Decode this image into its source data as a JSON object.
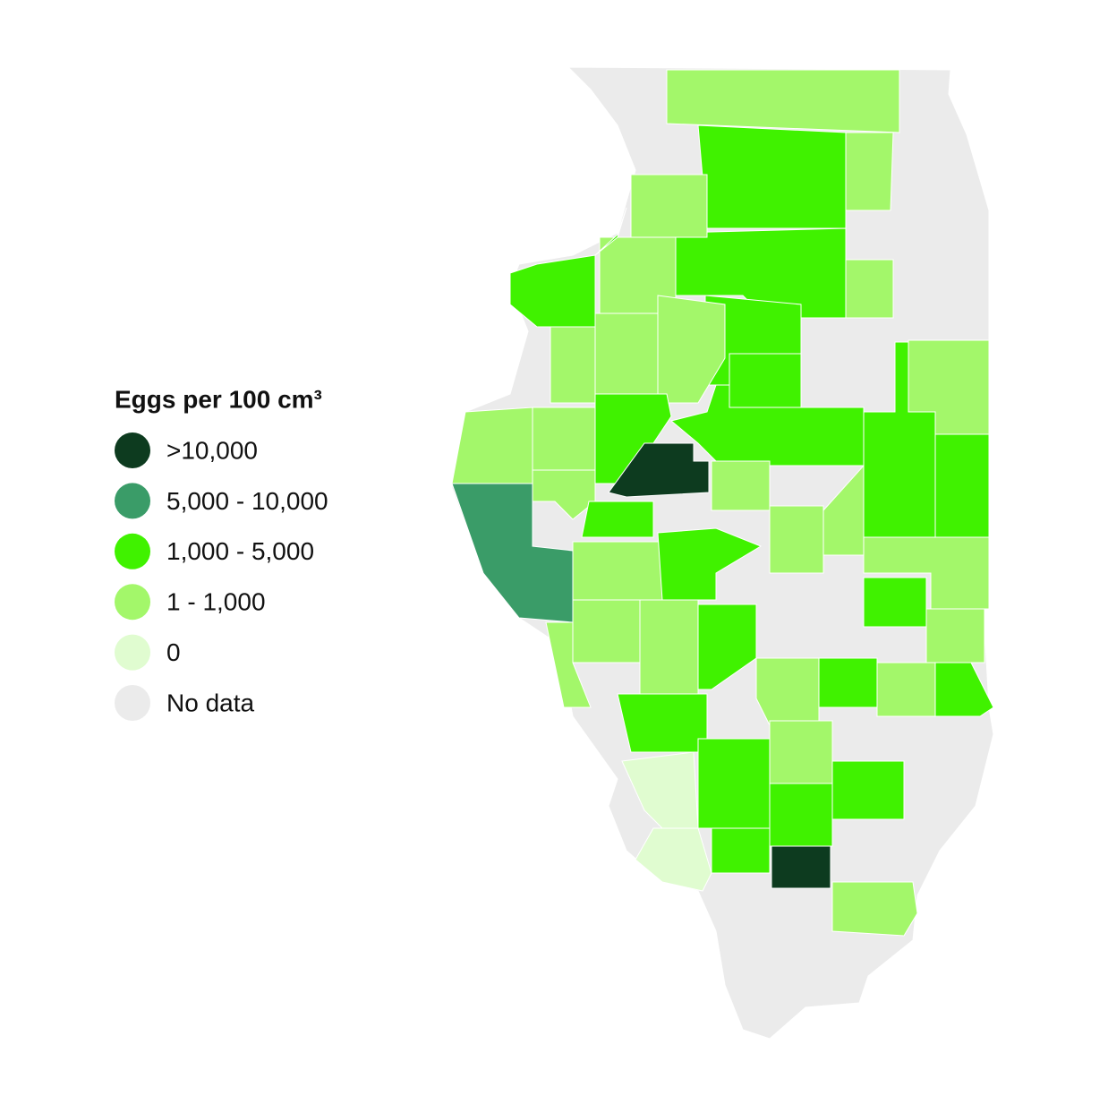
{
  "legend": {
    "title": "Eggs per 100 cm³",
    "items": [
      {
        "label": ">10,000",
        "color": "#0d3b1f"
      },
      {
        "label": "5,000 - 10,000",
        "color": "#3a9c68"
      },
      {
        "label": "1,000 - 5,000",
        "color": "#40f200"
      },
      {
        "label": "1 - 1,000",
        "color": "#a3f76a"
      },
      {
        "label": "0",
        "color": "#e0fcd0"
      },
      {
        "label": "No data",
        "color": "#ebebeb"
      }
    ]
  }
}
